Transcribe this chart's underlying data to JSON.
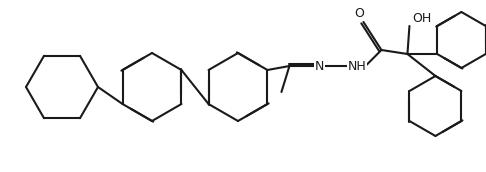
{
  "background_color": "#ffffff",
  "line_color": "#1a1a1a",
  "line_width": 1.5,
  "oh_label": "OH",
  "o_label": "O",
  "nh_label": "NH",
  "n_label": "N",
  "font_size": 9
}
